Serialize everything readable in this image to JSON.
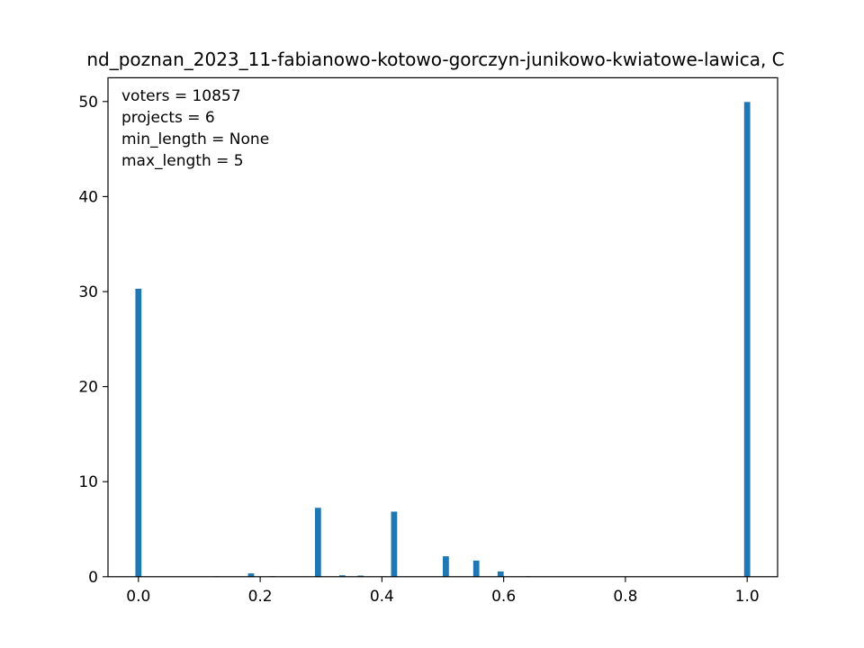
{
  "chart_data": {
    "type": "bar",
    "title": "nd_poznan_2023_11-fabianowo-kotowo-gorczyn-junikowo-kwiatowe-lawica, C",
    "xlabel": "",
    "ylabel": "",
    "xlim": [
      -0.05,
      1.05
    ],
    "ylim": [
      0,
      52.5
    ],
    "xticks": [
      {
        "value": 0.0,
        "label": "0.0"
      },
      {
        "value": 0.2,
        "label": "0.2"
      },
      {
        "value": 0.4,
        "label": "0.4"
      },
      {
        "value": 0.6,
        "label": "0.6"
      },
      {
        "value": 0.8,
        "label": "0.8"
      },
      {
        "value": 1.0,
        "label": "1.0"
      }
    ],
    "yticks": [
      {
        "value": 0,
        "label": "0"
      },
      {
        "value": 10,
        "label": "10"
      },
      {
        "value": 20,
        "label": "20"
      },
      {
        "value": 30,
        "label": "30"
      },
      {
        "value": 40,
        "label": "40"
      },
      {
        "value": 50,
        "label": "50"
      }
    ],
    "bin_width": 0.01,
    "bars": [
      {
        "x": 0.0,
        "y": 30.3
      },
      {
        "x": 0.13,
        "y": 0.04
      },
      {
        "x": 0.185,
        "y": 0.35
      },
      {
        "x": 0.22,
        "y": 0.05
      },
      {
        "x": 0.295,
        "y": 7.25
      },
      {
        "x": 0.335,
        "y": 0.15
      },
      {
        "x": 0.365,
        "y": 0.12
      },
      {
        "x": 0.42,
        "y": 6.85
      },
      {
        "x": 0.505,
        "y": 2.15
      },
      {
        "x": 0.555,
        "y": 1.7
      },
      {
        "x": 0.595,
        "y": 0.55
      },
      {
        "x": 0.64,
        "y": 0.05
      },
      {
        "x": 0.68,
        "y": 0.03
      },
      {
        "x": 1.0,
        "y": 49.95
      }
    ],
    "grid": false,
    "bar_color": "#1f77b4"
  },
  "annotations": [
    "voters = 10857",
    "projects = 6",
    "min_length = None",
    "max_length = 5"
  ]
}
